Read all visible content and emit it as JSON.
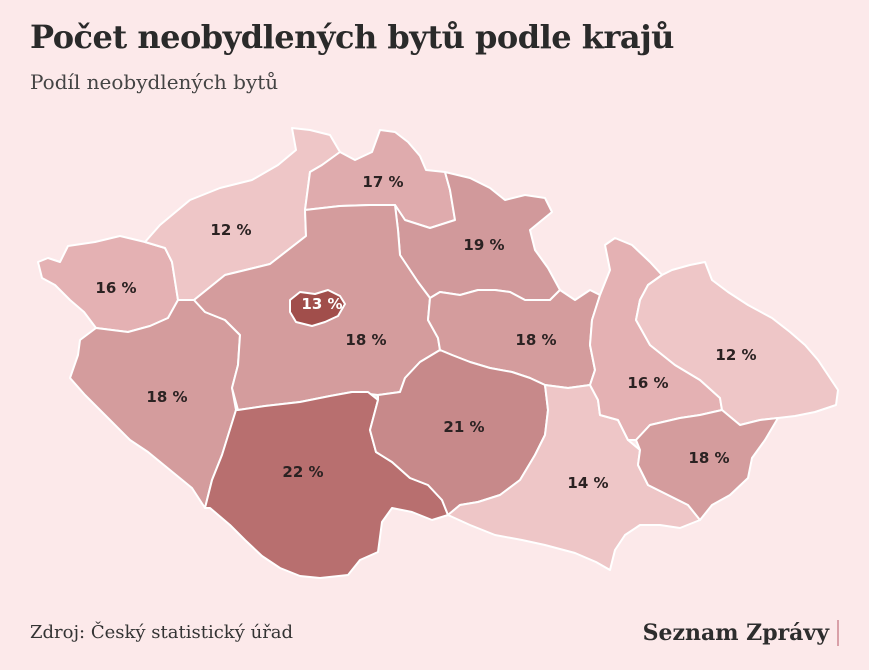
{
  "title": "Počet neobydlených bytů podle krajů",
  "subtitle": "Podíl neobydlených bytů",
  "source": "Zdroj: Český statistický úřad",
  "brand": "Seznam Zprávy",
  "colors": {
    "background": "#fce9ea",
    "scale_12": "#eec6c7",
    "scale_13": "#a14e4b",
    "scale_14": "#eec6c7",
    "scale_16": "#e4b1b3",
    "scale_17": "#dfabad",
    "scale_18": "#d49c9d",
    "scale_19": "#d1999b",
    "scale_21": "#c7898a",
    "scale_22": "#b86f6f"
  },
  "regions": [
    {
      "id": "karlovarsky",
      "label": "16 %",
      "value": 16
    },
    {
      "id": "ustecky",
      "label": "12 %",
      "value": 12
    },
    {
      "id": "liberecky",
      "label": "17 %",
      "value": 17
    },
    {
      "id": "kralovehradecky",
      "label": "19 %",
      "value": 19
    },
    {
      "id": "plzensky",
      "label": "18 %",
      "value": 18
    },
    {
      "id": "stredocesky",
      "label": "18 %",
      "value": 18
    },
    {
      "id": "praha",
      "label": "13 %",
      "value": 13
    },
    {
      "id": "pardubicky",
      "label": "18 %",
      "value": 18
    },
    {
      "id": "jihocesky",
      "label": "22 %",
      "value": 22
    },
    {
      "id": "vysocina",
      "label": "21 %",
      "value": 21
    },
    {
      "id": "jihomoravsky",
      "label": "14 %",
      "value": 14
    },
    {
      "id": "olomoucky",
      "label": "16 %",
      "value": 16
    },
    {
      "id": "moravskoslezsky",
      "label": "12 %",
      "value": 12
    },
    {
      "id": "zlinsky",
      "label": "18 %",
      "value": 18
    }
  ]
}
